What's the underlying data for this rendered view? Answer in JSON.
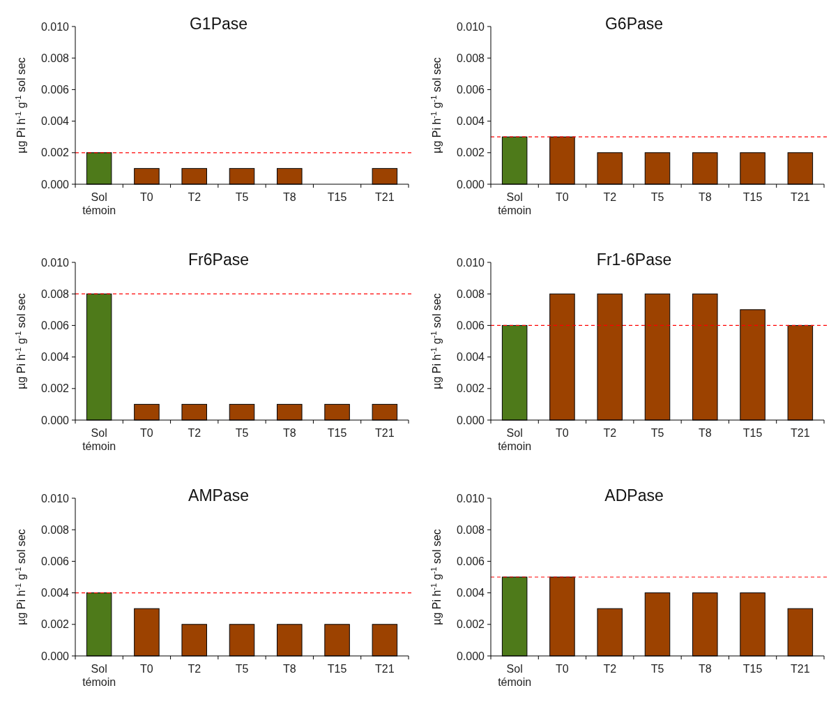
{
  "chart_data": [
    {
      "type": "bar",
      "title": "G1Pase",
      "ylabel": "µg Pi h$^{-1}$ g$^{-1}$ sol sec",
      "categories": [
        "Sol témoin",
        "T0",
        "T2",
        "T5",
        "T8",
        "T15",
        "T21"
      ],
      "values": [
        0.002,
        0.001,
        0.001,
        0.001,
        0.001,
        0,
        0.001
      ],
      "colors": [
        "#4e7a1a",
        "#9c4200",
        "#9c4200",
        "#9c4200",
        "#9c4200",
        "#9c4200",
        "#9c4200"
      ],
      "ylim": [
        0,
        0.01
      ],
      "yticks": [
        {
          "value": 0,
          "label": "0.000"
        },
        {
          "value": 0.002,
          "label": "0.002"
        },
        {
          "value": 0.004,
          "label": "0.004"
        },
        {
          "value": 0.006,
          "label": "0.006"
        },
        {
          "value": 0.008,
          "label": "0.008"
        },
        {
          "value": 0.01,
          "label": "0.010"
        }
      ],
      "ref_lines": [
        {
          "axis": "y",
          "value": 0.002,
          "color": "#ff0000",
          "line_style": "dashed"
        }
      ],
      "grid": false
    },
    {
      "type": "bar",
      "title": "G6Pase",
      "ylabel": "µg Pi h$^{-1}$ g$^{-1}$ sol sec",
      "categories": [
        "Sol témoin",
        "T0",
        "T2",
        "T5",
        "T8",
        "T15",
        "T21"
      ],
      "values": [
        0.003,
        0.003,
        0.002,
        0.002,
        0.002,
        0.002,
        0.002
      ],
      "colors": [
        "#4e7a1a",
        "#9c4200",
        "#9c4200",
        "#9c4200",
        "#9c4200",
        "#9c4200",
        "#9c4200"
      ],
      "ylim": [
        0,
        0.01
      ],
      "yticks": [
        {
          "value": 0,
          "label": "0.000"
        },
        {
          "value": 0.002,
          "label": "0.002"
        },
        {
          "value": 0.004,
          "label": "0.004"
        },
        {
          "value": 0.006,
          "label": "0.006"
        },
        {
          "value": 0.008,
          "label": "0.008"
        },
        {
          "value": 0.01,
          "label": "0.010"
        }
      ],
      "ref_lines": [
        {
          "axis": "y",
          "value": 0.003,
          "color": "#ff0000",
          "line_style": "dashed"
        }
      ],
      "grid": false
    },
    {
      "type": "bar",
      "title": "Fr6Pase",
      "ylabel": "µg Pi h$^{-1}$ g$^{-1}$ sol sec",
      "categories": [
        "Sol témoin",
        "T0",
        "T2",
        "T5",
        "T8",
        "T15",
        "T21"
      ],
      "values": [
        0.008,
        0.001,
        0.001,
        0.001,
        0.001,
        0.001,
        0.001
      ],
      "colors": [
        "#4e7a1a",
        "#9c4200",
        "#9c4200",
        "#9c4200",
        "#9c4200",
        "#9c4200",
        "#9c4200"
      ],
      "ylim": [
        0,
        0.01
      ],
      "yticks": [
        {
          "value": 0,
          "label": "0.000"
        },
        {
          "value": 0.002,
          "label": "0.002"
        },
        {
          "value": 0.004,
          "label": "0.004"
        },
        {
          "value": 0.006,
          "label": "0.006"
        },
        {
          "value": 0.008,
          "label": "0.008"
        },
        {
          "value": 0.01,
          "label": "0.010"
        }
      ],
      "ref_lines": [
        {
          "axis": "y",
          "value": 0.008,
          "color": "#ff0000",
          "line_style": "dashed"
        }
      ],
      "grid": false
    },
    {
      "type": "bar",
      "title": "Fr1-6Pase",
      "ylabel": "µg Pi h$^{-1}$ g$^{-1}$ sol sec",
      "categories": [
        "Sol témoin",
        "T0",
        "T2",
        "T5",
        "T8",
        "T15",
        "T21"
      ],
      "values": [
        0.006,
        0.008,
        0.008,
        0.008,
        0.008,
        0.007,
        0.006
      ],
      "colors": [
        "#4e7a1a",
        "#9c4200",
        "#9c4200",
        "#9c4200",
        "#9c4200",
        "#9c4200",
        "#9c4200"
      ],
      "ylim": [
        0,
        0.01
      ],
      "yticks": [
        {
          "value": 0,
          "label": "0.000"
        },
        {
          "value": 0.002,
          "label": "0.002"
        },
        {
          "value": 0.004,
          "label": "0.004"
        },
        {
          "value": 0.006,
          "label": "0.006"
        },
        {
          "value": 0.008,
          "label": "0.008"
        },
        {
          "value": 0.01,
          "label": "0.010"
        }
      ],
      "ref_lines": [
        {
          "axis": "y",
          "value": 0.006,
          "color": "#ff0000",
          "line_style": "dashed"
        }
      ],
      "grid": false
    },
    {
      "type": "bar",
      "title": "AMPase",
      "ylabel": "µg Pi h$^{-1}$ g$^{-1}$ sol sec",
      "categories": [
        "Sol témoin",
        "T0",
        "T2",
        "T5",
        "T8",
        "T15",
        "T21"
      ],
      "values": [
        0.004,
        0.003,
        0.002,
        0.002,
        0.002,
        0.002,
        0.002
      ],
      "colors": [
        "#4e7a1a",
        "#9c4200",
        "#9c4200",
        "#9c4200",
        "#9c4200",
        "#9c4200",
        "#9c4200"
      ],
      "ylim": [
        0,
        0.01
      ],
      "yticks": [
        {
          "value": 0,
          "label": "0.000"
        },
        {
          "value": 0.002,
          "label": "0.002"
        },
        {
          "value": 0.004,
          "label": "0.004"
        },
        {
          "value": 0.006,
          "label": "0.006"
        },
        {
          "value": 0.008,
          "label": "0.008"
        },
        {
          "value": 0.01,
          "label": "0.010"
        }
      ],
      "ref_lines": [
        {
          "axis": "y",
          "value": 0.004,
          "color": "#ff0000",
          "line_style": "dashed"
        }
      ],
      "grid": false
    },
    {
      "type": "bar",
      "title": "ADPase",
      "ylabel": "µg Pi h$^{-1}$ g$^{-1}$ sol sec",
      "categories": [
        "Sol témoin",
        "T0",
        "T2",
        "T5",
        "T8",
        "T15",
        "T21"
      ],
      "values": [
        0.005,
        0.005,
        0.003,
        0.004,
        0.004,
        0.004,
        0.003
      ],
      "colors": [
        "#4e7a1a",
        "#9c4200",
        "#9c4200",
        "#9c4200",
        "#9c4200",
        "#9c4200",
        "#9c4200"
      ],
      "ylim": [
        0,
        0.01
      ],
      "yticks": [
        {
          "value": 0,
          "label": "0.000"
        },
        {
          "value": 0.002,
          "label": "0.002"
        },
        {
          "value": 0.004,
          "label": "0.004"
        },
        {
          "value": 0.006,
          "label": "0.006"
        },
        {
          "value": 0.008,
          "label": "0.008"
        },
        {
          "value": 0.01,
          "label": "0.010"
        }
      ],
      "ref_lines": [
        {
          "axis": "y",
          "value": 0.005,
          "color": "#ff0000",
          "line_style": "dashed"
        }
      ],
      "grid": false
    }
  ]
}
